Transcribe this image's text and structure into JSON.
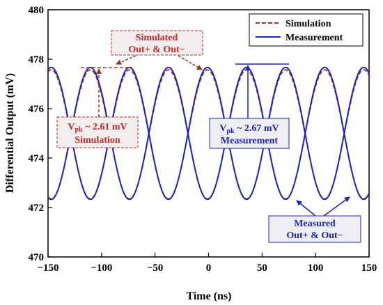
{
  "chart_data": {
    "type": "line",
    "xlabel": "Time (ns)",
    "ylabel": "Differential Output (mV)",
    "xlim": [
      -150,
      150
    ],
    "ylim": [
      470,
      480
    ],
    "xticks": [
      -150,
      -100,
      -50,
      0,
      50,
      100,
      150
    ],
    "yticks": [
      470,
      472,
      474,
      476,
      478,
      480
    ],
    "grid": false,
    "legend_position": "top-right",
    "period_ns": 73,
    "series": [
      {
        "name": "Simulation",
        "style": "dashed",
        "color": "#8b3a2a",
        "traces": [
          {
            "label": "Out+",
            "center": 474.96,
            "amplitude": 2.61,
            "peak_at_ns": -1
          },
          {
            "label": "Out-",
            "center": 474.96,
            "amplitude": -2.61,
            "peak_at_ns": -1
          }
        ]
      },
      {
        "name": "Measurement",
        "style": "solid",
        "color": "#1f24b8",
        "traces": [
          {
            "label": "Out+",
            "center": 475.0,
            "amplitude": 2.67,
            "peak_at_ns": -1
          },
          {
            "label": "Out-",
            "center": 475.0,
            "amplitude": -2.67,
            "peak_at_ns": -1
          }
        ]
      }
    ],
    "annotations": {
      "sim_traces": {
        "line1": "Simulated",
        "line2": "Out+ & Out−"
      },
      "sim_vpk": {
        "prefix": "V",
        "subscript": "pk",
        "value": " ~ 2.61 mV",
        "line2": "Simulation"
      },
      "meas_vpk": {
        "prefix": "V",
        "subscript": "pk",
        "value": " ~ 2.67 mV",
        "line2": "Measurement"
      },
      "meas_traces": {
        "line1": "Measured",
        "line2": "Out+ & Out−"
      }
    }
  }
}
